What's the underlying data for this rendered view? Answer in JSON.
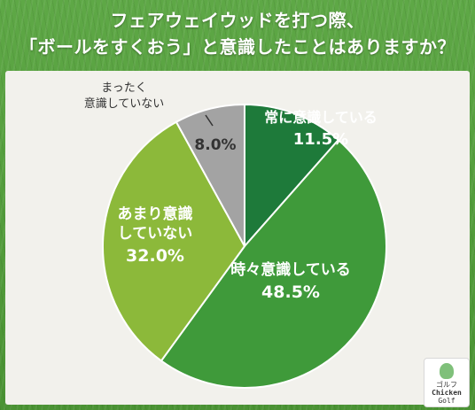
{
  "title_lines": [
    "フェアウェイウッドを打つ際、",
    "「ボールをすくおう」と意識したことはありますか？"
  ],
  "chart_data": {
    "type": "pie",
    "title": "フェアウェイウッドを打つ際、「ボールをすくおう」と意識したことはありますか？",
    "start_angle_deg": 0,
    "direction": "clockwise",
    "unit": "%",
    "slices": [
      {
        "label_lines": [
          "常に意識している"
        ],
        "value": 11.5,
        "display": "11.5%",
        "color": "#1e7a3a",
        "label_color": "#ffffff"
      },
      {
        "label_lines": [
          "時々意識している"
        ],
        "value": 48.5,
        "display": "48.5%",
        "color": "#3f9a3a",
        "label_color": "#ffffff"
      },
      {
        "label_lines": [
          "あまり意識",
          "していない"
        ],
        "value": 32.0,
        "display": "32.0%",
        "color": "#8cb93a",
        "label_color": "#ffffff"
      },
      {
        "label_lines": [
          "まったく",
          "意識していない"
        ],
        "value": 8.0,
        "display": "8.0%",
        "color": "#a3a3a3",
        "label_color": "#333333"
      }
    ]
  },
  "logo": {
    "text_top": "ゴルフ",
    "text_main": "Chicken",
    "text_sub": "Golf"
  }
}
